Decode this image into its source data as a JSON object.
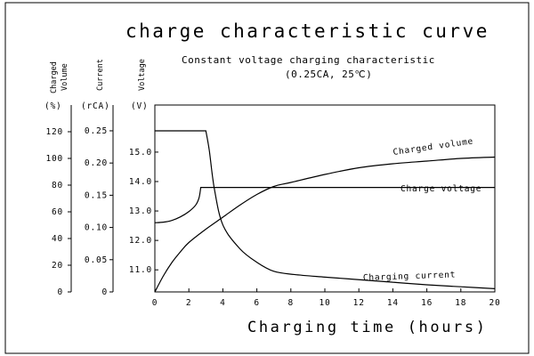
{
  "chart_data": {
    "type": "line",
    "title": "charge characteristic curve",
    "subtitle_line1": "Constant voltage charging characteristic",
    "subtitle_line2": "(0.25CA, 25℃)",
    "xlabel": "Charging time (hours)",
    "xlim": [
      0,
      20
    ],
    "xticks": [
      0,
      2,
      4,
      6,
      8,
      10,
      12,
      14,
      16,
      18,
      20
    ],
    "axes": {
      "charged_volume": {
        "label_line1": "Charged",
        "label_line2": "Volume",
        "unit": "(%)",
        "ticks": [
          "0",
          "20",
          "40",
          "60",
          "80",
          "100",
          "120"
        ],
        "range": [
          0,
          140
        ]
      },
      "current": {
        "label": "Current",
        "unit": "(rCA)",
        "ticks": [
          "0",
          "0.05",
          "0.10",
          "0.15",
          "0.20",
          "0.25"
        ],
        "range": [
          0,
          0.29
        ]
      },
      "voltage": {
        "label": "Voltage",
        "unit": "(V)",
        "ticks": [
          "11.0",
          "12.0",
          "13.0",
          "14.0",
          "15.0"
        ],
        "range": [
          10.25,
          16.6
        ]
      }
    },
    "series": [
      {
        "name": "Charged volume",
        "axis": "charged_volume",
        "x": [
          0,
          0.5,
          1,
          1.5,
          2,
          3,
          4,
          5,
          6,
          7,
          8,
          10,
          12,
          14,
          16,
          18,
          20
        ],
        "y": [
          0,
          12,
          22,
          30,
          37,
          47,
          56,
          65,
          73,
          79,
          82,
          88,
          93,
          96,
          98,
          100,
          101
        ]
      },
      {
        "name": "Charge voltage",
        "axis": "voltage",
        "x": [
          0,
          0.5,
          1,
          1.5,
          2,
          2.4,
          2.6,
          2.7,
          20
        ],
        "y": [
          12.6,
          12.62,
          12.68,
          12.8,
          12.98,
          13.2,
          13.45,
          13.8,
          13.8
        ]
      },
      {
        "name": "Charging current",
        "axis": "current",
        "x": [
          0,
          3.0,
          3.2,
          3.5,
          4,
          5,
          6,
          7,
          8.2,
          10,
          12,
          14,
          16,
          18,
          20
        ],
        "y": [
          0.25,
          0.25,
          0.22,
          0.16,
          0.104,
          0.067,
          0.046,
          0.032,
          0.027,
          0.023,
          0.019,
          0.015,
          0.011,
          0.008,
          0.005
        ]
      }
    ]
  }
}
